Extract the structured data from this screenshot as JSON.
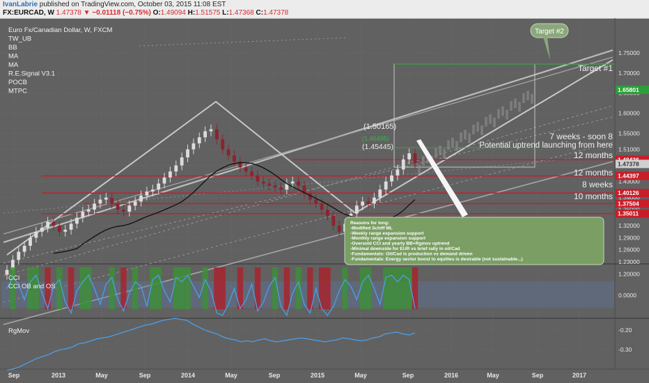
{
  "header": {
    "author": "IvanLabrie",
    "published": " published on TradingView.com, October 03, 2015 11:08 EST",
    "symbol": "FX:EURCAD, W",
    "last": "1.47378",
    "change": "▼ −0.01118 (−0.75%)",
    "o_label": "O:",
    "o": "1.49094",
    "h_label": "H:",
    "h": "1.51575",
    "l_label": "L:",
    "l": "1.47368",
    "c_label": "C:",
    "c": "1.47378"
  },
  "legend": [
    "Euro Fx/Canadian Dollar, W, FXCM",
    "TW_UB",
    "BB",
    "MA",
    "MA",
    "R.E.Signal V3.1",
    "POCB",
    "MTPC"
  ],
  "cci_legend": [
    "CCI",
    "CCI OB and OS"
  ],
  "rgmov_legend": [
    "RgMov"
  ],
  "colors": {
    "background": "#616161",
    "grid": "#707070",
    "up_candle": "#dcdcdc",
    "down_candle": "#8a2430",
    "resistance_line": "#c81e2a",
    "ma_line": "#141414",
    "cci_line": "#4d9be0",
    "rgmov_line": "#4d9be0",
    "note_bg": "#7a9e63",
    "target_bubble": "#8aa87a",
    "highlight_label": "#2c9e3a"
  },
  "chart_data": [
    {
      "type": "candlestick",
      "title": "Euro Fx/Canadian Dollar, W, FXCM",
      "yticks": [
        "1.75000",
        "1.70000",
        "1.65000",
        "1.60000",
        "1.55000",
        "1.51000",
        "1.47000",
        "1.43000",
        "1.39000",
        "1.36000",
        "1.32000",
        "1.29000",
        "1.26000",
        "1.23000",
        "1.20000"
      ],
      "xticks": [
        "Sep",
        "2013",
        "May",
        "Sep",
        "2014",
        "May",
        "Sep",
        "2015",
        "May",
        "Sep",
        "2016",
        "May",
        "Sep",
        "2017"
      ],
      "price_labels": [
        {
          "value": "1.65801",
          "color": "#2c9e3a"
        },
        {
          "value": "1.48436",
          "color": "#c81e2a"
        },
        {
          "value": "1.47378",
          "color": "#d0d0d0"
        },
        {
          "value": "1.44397",
          "color": "#c81e2a"
        },
        {
          "value": "1.40126",
          "color": "#c81e2a"
        },
        {
          "value": "1.37504",
          "color": "#c81e2a"
        },
        {
          "value": "1.35011",
          "color": "#c81e2a"
        }
      ],
      "horizontal_levels": [
        1.48436,
        1.44397,
        1.40126,
        1.37504,
        1.35011
      ],
      "closes": [
        1.21,
        1.235,
        1.255,
        1.27,
        1.29,
        1.305,
        1.315,
        1.33,
        1.32,
        1.305,
        1.31,
        1.325,
        1.34,
        1.355,
        1.36,
        1.375,
        1.385,
        1.39,
        1.375,
        1.36,
        1.355,
        1.37,
        1.38,
        1.395,
        1.405,
        1.41,
        1.425,
        1.44,
        1.455,
        1.47,
        1.49,
        1.51,
        1.525,
        1.54,
        1.555,
        1.56,
        1.535,
        1.51,
        1.495,
        1.48,
        1.465,
        1.455,
        1.445,
        1.43,
        1.425,
        1.42,
        1.415,
        1.41,
        1.425,
        1.43,
        1.42,
        1.4,
        1.385,
        1.375,
        1.36,
        1.345,
        1.32,
        1.305,
        1.325,
        1.35,
        1.37,
        1.38,
        1.375,
        1.39,
        1.41,
        1.43,
        1.445,
        1.46,
        1.485,
        1.5,
        1.475
      ],
      "annotations": [
        "(1.50165)",
        "(1.46495)",
        "(1.45445)",
        "Target #1",
        "Target #2",
        "7 weeks - soon 8",
        "Potential uptrend launching from here",
        "12 months",
        "12 months",
        "8 weeks",
        "10 months"
      ],
      "note": [
        "Reasons for long:",
        "-Modified Schiff ML",
        "-Weekly range expansion support",
        "-Monthly range expansion support",
        "-Oversold CCI and yearly BB+Rgmov uptrend",
        "-Minimal downside for EUR vs brief rally in oil/Cad",
        "-Fundamentals: Oil/Cad is production vs demand driven",
        "-Fundamentals: Energy sector boost to equities is desirable (not sustainable...)"
      ]
    },
    {
      "type": "line",
      "title": "CCI",
      "yticks": [
        "0.0000"
      ],
      "values": [
        0.3,
        0.8,
        0.5,
        -0.2,
        0.6,
        0.9,
        0.1,
        -0.6,
        0.4,
        0.7,
        -0.3,
        -0.8,
        0.2,
        0.6,
        0.9,
        0.3,
        -0.4,
        0.5,
        0.8,
        -0.2,
        -0.7,
        0.1,
        0.6,
        0.4,
        -0.5,
        0.7,
        0.9,
        0.2,
        -0.3,
        0.8,
        0.6,
        0.9,
        0.4,
        -0.1,
        0.7,
        0.2,
        -0.8,
        -0.9,
        -0.4,
        0.3,
        -0.6,
        -0.2,
        0.5,
        -0.7,
        -0.3,
        0.4,
        0.8,
        -0.5,
        -0.9,
        0.1,
        0.6,
        -0.4,
        -0.8,
        0.3,
        -0.6,
        -0.9,
        -0.5,
        0.2,
        0.7,
        0.4,
        -0.2,
        0.6,
        0.9,
        0.3,
        -0.4,
        0.8,
        0.9,
        0.6,
        0.9,
        0.7,
        -0.6
      ]
    },
    {
      "type": "line",
      "title": "RgMov",
      "yticks": [
        "-0.20",
        "-0.30"
      ],
      "values": [
        -0.405,
        -0.4,
        -0.39,
        -0.375,
        -0.36,
        -0.345,
        -0.335,
        -0.325,
        -0.31,
        -0.3,
        -0.295,
        -0.285,
        -0.27,
        -0.265,
        -0.255,
        -0.245,
        -0.24,
        -0.235,
        -0.225,
        -0.215,
        -0.205,
        -0.195,
        -0.185,
        -0.175,
        -0.17,
        -0.16,
        -0.15,
        -0.145,
        -0.14,
        -0.145,
        -0.15,
        -0.17,
        -0.185,
        -0.2,
        -0.21,
        -0.22,
        -0.235,
        -0.245,
        -0.25,
        -0.26,
        -0.255,
        -0.26,
        -0.25,
        -0.245,
        -0.255,
        -0.26,
        -0.255,
        -0.25,
        -0.245,
        -0.24,
        -0.245,
        -0.25,
        -0.255,
        -0.26,
        -0.255,
        -0.25,
        -0.24,
        -0.245,
        -0.25,
        -0.255,
        -0.25,
        -0.24,
        -0.235,
        -0.22,
        -0.215,
        -0.21,
        -0.22,
        -0.225,
        -0.215
      ]
    }
  ]
}
